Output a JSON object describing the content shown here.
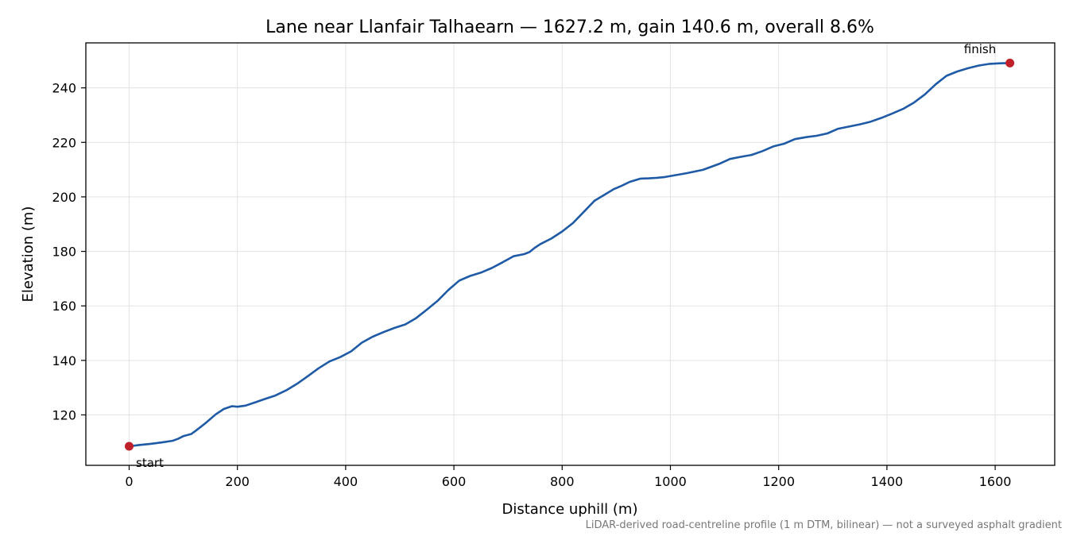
{
  "chart_data": {
    "type": "line",
    "title": "Lane near Llanfair Talhaearn — 1627.2 m, gain 140.6 m, overall 8.6%",
    "xlabel": "Distance uphill (m)",
    "ylabel": "Elevation (m)",
    "xlim": [
      -80,
      1710
    ],
    "ylim": [
      101.5,
      256.5
    ],
    "xticks": [
      0,
      200,
      400,
      600,
      800,
      1000,
      1200,
      1400,
      1600
    ],
    "yticks": [
      120,
      140,
      160,
      180,
      200,
      220,
      240
    ],
    "grid": true,
    "line_color": "#1f5aa6",
    "marker_color": "#c0202a",
    "series": [
      {
        "x": [
          0,
          20,
          40,
          60,
          80,
          90,
          100,
          115,
          125,
          140,
          160,
          175,
          190,
          200,
          215,
          230,
          250,
          270,
          290,
          310,
          330,
          350,
          370,
          390,
          410,
          430,
          450,
          470,
          490,
          510,
          530,
          550,
          570,
          590,
          610,
          630,
          650,
          670,
          690,
          710,
          730,
          740,
          750,
          760,
          780,
          800,
          820,
          840,
          860,
          880,
          895,
          910,
          925,
          945,
          960,
          975,
          990,
          1010,
          1030,
          1060,
          1090,
          1110,
          1130,
          1150,
          1170,
          1190,
          1210,
          1230,
          1250,
          1270,
          1290,
          1310,
          1330,
          1350,
          1370,
          1390,
          1410,
          1430,
          1450,
          1470,
          1490,
          1510,
          1530,
          1550,
          1570,
          1590,
          1610,
          1627.2
        ],
        "y": [
          108.5,
          109.0,
          109.4,
          109.9,
          110.5,
          111.2,
          112.2,
          113.0,
          114.5,
          116.8,
          120.2,
          122.2,
          123.2,
          123.0,
          123.4,
          124.4,
          125.8,
          127.1,
          129.0,
          131.4,
          134.2,
          137.1,
          139.6,
          141.2,
          143.3,
          146.5,
          148.7,
          150.4,
          151.9,
          153.2,
          155.5,
          158.6,
          161.9,
          165.9,
          169.3,
          171.0,
          172.2,
          173.9,
          176.0,
          178.2,
          179.0,
          179.8,
          181.4,
          182.7,
          184.7,
          187.3,
          190.4,
          194.5,
          198.6,
          201.0,
          202.8,
          204.1,
          205.5,
          206.7,
          206.8,
          207.0,
          207.3,
          208.0,
          208.7,
          209.9,
          212.1,
          213.9,
          214.7,
          215.4,
          216.8,
          218.5,
          219.5,
          221.2,
          221.9,
          222.4,
          223.3,
          225.0,
          225.8,
          226.6,
          227.6,
          229.0,
          230.6,
          232.3,
          234.6,
          237.6,
          241.3,
          244.4,
          246.0,
          247.2,
          248.2,
          248.8,
          249.0,
          249.1
        ]
      }
    ],
    "annotations": {
      "start": {
        "label": "start",
        "x": 0,
        "y": 108.5
      },
      "finish": {
        "label": "finish",
        "x": 1627.2,
        "y": 249.1
      }
    },
    "footnote": "LiDAR-derived road-centreline profile (1 m DTM, bilinear) — not a surveyed asphalt gradient"
  }
}
